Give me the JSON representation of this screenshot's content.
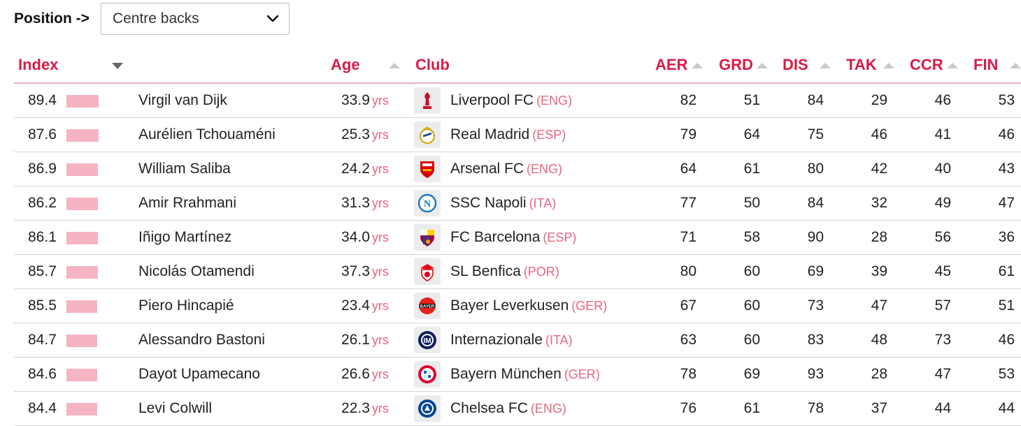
{
  "filter": {
    "label": "Position ->",
    "selected": "Centre backs"
  },
  "columns": {
    "index": "Index",
    "age": "Age",
    "club": "Club",
    "aer": "AER",
    "grd": "GRD",
    "dis": "DIS",
    "tak": "TAK",
    "ccr": "CCR",
    "fin": "FIN"
  },
  "unit_label": "yrs",
  "colors": {
    "accent": "#d81b47",
    "bar": "#f4b4c2",
    "country": "#e8657f"
  },
  "rows": [
    {
      "index": "89.4",
      "index_fill": 0.894,
      "player": "Virgil van Dijk",
      "age": "33.9",
      "club": "Liverpool FC",
      "country": "(ENG)",
      "crest_icon": "liverpool-crest-icon",
      "aer": "82",
      "grd": "51",
      "dis": "84",
      "tak": "29",
      "ccr": "46",
      "fin": "53"
    },
    {
      "index": "87.6",
      "index_fill": 0.876,
      "player": "Aurélien Tchouaméni",
      "age": "25.3",
      "club": "Real Madrid",
      "country": "(ESP)",
      "crest_icon": "real-madrid-crest-icon",
      "aer": "79",
      "grd": "64",
      "dis": "75",
      "tak": "46",
      "ccr": "41",
      "fin": "46"
    },
    {
      "index": "86.9",
      "index_fill": 0.869,
      "player": "William Saliba",
      "age": "24.2",
      "club": "Arsenal FC",
      "country": "(ENG)",
      "crest_icon": "arsenal-crest-icon",
      "aer": "64",
      "grd": "61",
      "dis": "80",
      "tak": "42",
      "ccr": "40",
      "fin": "43"
    },
    {
      "index": "86.2",
      "index_fill": 0.862,
      "player": "Amir Rrahmani",
      "age": "31.3",
      "club": "SSC Napoli",
      "country": "(ITA)",
      "crest_icon": "napoli-crest-icon",
      "aer": "77",
      "grd": "50",
      "dis": "84",
      "tak": "32",
      "ccr": "49",
      "fin": "47"
    },
    {
      "index": "86.1",
      "index_fill": 0.861,
      "player": "Iñigo Martínez",
      "age": "34.0",
      "club": "FC Barcelona",
      "country": "(ESP)",
      "crest_icon": "barcelona-crest-icon",
      "aer": "71",
      "grd": "58",
      "dis": "90",
      "tak": "28",
      "ccr": "56",
      "fin": "36"
    },
    {
      "index": "85.7",
      "index_fill": 0.857,
      "player": "Nicolás Otamendi",
      "age": "37.3",
      "club": "SL Benfica",
      "country": "(POR)",
      "crest_icon": "benfica-crest-icon",
      "aer": "80",
      "grd": "60",
      "dis": "69",
      "tak": "39",
      "ccr": "45",
      "fin": "61"
    },
    {
      "index": "85.5",
      "index_fill": 0.855,
      "player": "Piero Hincapié",
      "age": "23.4",
      "club": "Bayer Leverkusen",
      "country": "(GER)",
      "crest_icon": "leverkusen-crest-icon",
      "aer": "67",
      "grd": "60",
      "dis": "73",
      "tak": "47",
      "ccr": "57",
      "fin": "51"
    },
    {
      "index": "84.7",
      "index_fill": 0.847,
      "player": "Alessandro Bastoni",
      "age": "26.1",
      "club": "Internazionale",
      "country": "(ITA)",
      "crest_icon": "inter-crest-icon",
      "aer": "63",
      "grd": "60",
      "dis": "83",
      "tak": "48",
      "ccr": "73",
      "fin": "46"
    },
    {
      "index": "84.6",
      "index_fill": 0.846,
      "player": "Dayot Upamecano",
      "age": "26.6",
      "club": "Bayern München",
      "country": "(GER)",
      "crest_icon": "bayern-crest-icon",
      "aer": "78",
      "grd": "69",
      "dis": "93",
      "tak": "28",
      "ccr": "47",
      "fin": "53"
    },
    {
      "index": "84.4",
      "index_fill": 0.844,
      "player": "Levi Colwill",
      "age": "22.3",
      "club": "Chelsea FC",
      "country": "(ENG)",
      "crest_icon": "chelsea-crest-icon",
      "aer": "76",
      "grd": "61",
      "dis": "78",
      "tak": "37",
      "ccr": "44",
      "fin": "44"
    }
  ]
}
